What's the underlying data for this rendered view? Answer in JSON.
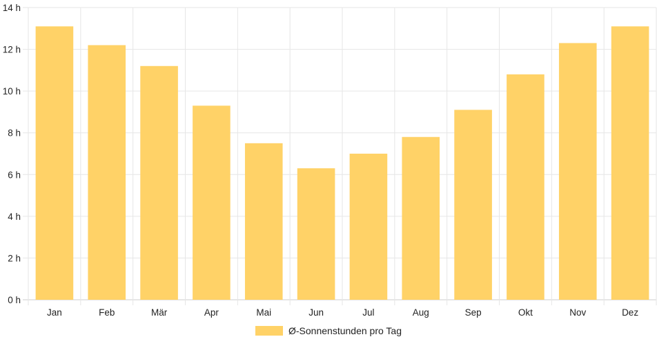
{
  "colors": {
    "bar": "#ffd267",
    "grid": "#e6e6e6",
    "axis": "#cccccc",
    "text": "#222222"
  },
  "chart_data": {
    "type": "bar",
    "categories": [
      "Jan",
      "Feb",
      "Mär",
      "Apr",
      "Mai",
      "Jun",
      "Jul",
      "Aug",
      "Sep",
      "Okt",
      "Nov",
      "Dez"
    ],
    "series": [
      {
        "name": "Ø-Sonnenstunden pro Tag",
        "values": [
          13.1,
          12.2,
          11.2,
          9.3,
          7.5,
          6.3,
          7.0,
          7.8,
          9.1,
          10.8,
          12.3,
          13.1
        ]
      }
    ],
    "ylim": [
      0,
      14
    ],
    "y_ticks": [
      0,
      2,
      4,
      6,
      8,
      10,
      12,
      14
    ],
    "y_tick_labels": [
      "0 h",
      "2 h",
      "4 h",
      "6 h",
      "8 h",
      "10 h",
      "12 h",
      "14 h"
    ],
    "grid": true,
    "legend_position": "bottom"
  }
}
